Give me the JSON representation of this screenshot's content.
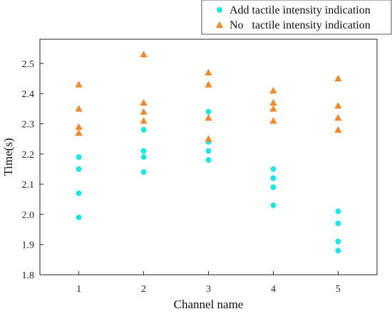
{
  "chart_data": {
    "type": "scatter",
    "title": "",
    "xlabel": "Channel name",
    "ylabel": "Time(s)",
    "xticks": [
      "1",
      "2",
      "3",
      "4",
      "5"
    ],
    "xlim": [
      0.4,
      5.6
    ],
    "ylim": [
      1.8,
      2.58
    ],
    "yticks": [
      "1.8",
      "1.9",
      "2.0",
      "2.1",
      "2.2",
      "2.3",
      "2.4",
      "2.5"
    ],
    "grid": false,
    "legend_position": "top-right",
    "series": [
      {
        "name": "Add tactile intensity indication",
        "marker": "circle",
        "color": "#1FE5E5",
        "points": [
          [
            1,
            2.19
          ],
          [
            1,
            2.15
          ],
          [
            1,
            2.07
          ],
          [
            1,
            1.99
          ],
          [
            2,
            2.28
          ],
          [
            2,
            2.21
          ],
          [
            2,
            2.19
          ],
          [
            2,
            2.14
          ],
          [
            3,
            2.34
          ],
          [
            3,
            2.24
          ],
          [
            3,
            2.21
          ],
          [
            3,
            2.18
          ],
          [
            4,
            2.15
          ],
          [
            4,
            2.12
          ],
          [
            4,
            2.09
          ],
          [
            4,
            2.03
          ],
          [
            5,
            2.01
          ],
          [
            5,
            1.97
          ],
          [
            5,
            1.91
          ],
          [
            5,
            1.88
          ]
        ]
      },
      {
        "name": "No   tactile intensity indication",
        "marker": "triangle",
        "color": "#EE8A2E",
        "points": [
          [
            1,
            2.43
          ],
          [
            1,
            2.35
          ],
          [
            1,
            2.29
          ],
          [
            1,
            2.27
          ],
          [
            2,
            2.53
          ],
          [
            2,
            2.37
          ],
          [
            2,
            2.34
          ],
          [
            2,
            2.31
          ],
          [
            3,
            2.47
          ],
          [
            3,
            2.43
          ],
          [
            3,
            2.32
          ],
          [
            3,
            2.25
          ],
          [
            4,
            2.41
          ],
          [
            4,
            2.37
          ],
          [
            4,
            2.35
          ],
          [
            4,
            2.31
          ],
          [
            5,
            2.45
          ],
          [
            5,
            2.36
          ],
          [
            5,
            2.32
          ],
          [
            5,
            2.28
          ]
        ]
      }
    ]
  }
}
